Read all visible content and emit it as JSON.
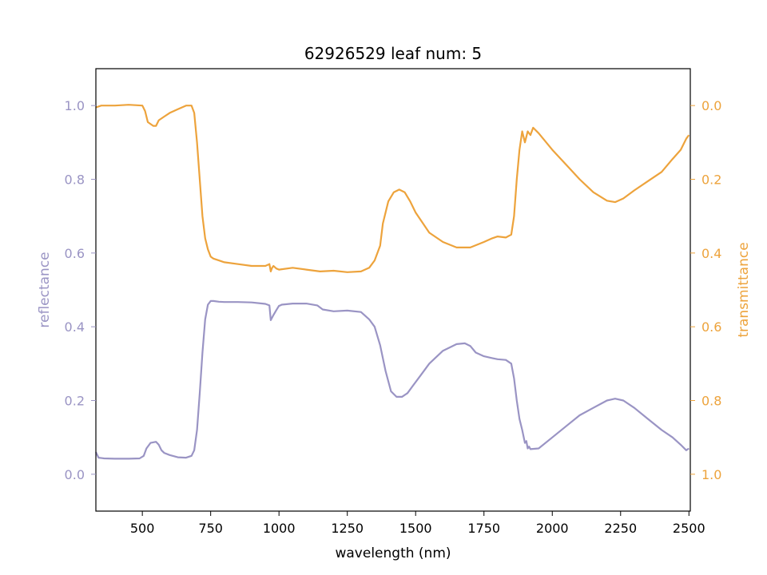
{
  "chart_data": {
    "type": "line",
    "title": "62926529 leaf num: 5",
    "xlabel": "wavelength (nm)",
    "ylabel_left": "reflectance",
    "ylabel_right": "transmittance",
    "xlim": [
      330,
      2505
    ],
    "ylim_left": [
      -0.1,
      1.1
    ],
    "ylim_right": [
      1.1,
      -0.1
    ],
    "right_axis_inverted": true,
    "grid": false,
    "x_ticks": [
      500,
      750,
      1000,
      1250,
      1500,
      1750,
      2000,
      2250,
      2500
    ],
    "y_left_ticks": [
      0.0,
      0.2,
      0.4,
      0.6,
      0.8,
      1.0
    ],
    "y_left_tick_labels": [
      "0.0",
      "0.2",
      "0.4",
      "0.6",
      "0.8",
      "1.0"
    ],
    "y_right_ticks": [
      0.0,
      0.2,
      0.4,
      0.6,
      0.8,
      1.0
    ],
    "y_right_tick_labels": [
      "0.0",
      "0.2",
      "0.4",
      "0.6",
      "0.8",
      "1.0"
    ],
    "colors": {
      "reflectance": "#9a94c4",
      "transmittance": "#eda33c",
      "axis": "#000000"
    },
    "series": [
      {
        "key": "reflectance",
        "axis": "left",
        "x": [
          330,
          340,
          360,
          400,
          450,
          490,
          505,
          515,
          530,
          550,
          560,
          570,
          580,
          600,
          630,
          660,
          680,
          690,
          700,
          710,
          720,
          730,
          740,
          750,
          760,
          780,
          800,
          850,
          900,
          950,
          965,
          970,
          975,
          980,
          990,
          1000,
          1005,
          1010,
          1050,
          1100,
          1140,
          1160,
          1200,
          1250,
          1300,
          1330,
          1350,
          1370,
          1390,
          1410,
          1430,
          1450,
          1470,
          1490,
          1520,
          1550,
          1600,
          1650,
          1680,
          1700,
          1720,
          1750,
          1780,
          1800,
          1830,
          1850,
          1860,
          1870,
          1880,
          1890,
          1900,
          1905,
          1910,
          1915,
          1920,
          1950,
          2000,
          2050,
          2100,
          2150,
          2200,
          2230,
          2260,
          2300,
          2350,
          2400,
          2440,
          2470,
          2490,
          2500
        ],
        "y": [
          0.06,
          0.045,
          0.043,
          0.042,
          0.042,
          0.043,
          0.05,
          0.07,
          0.085,
          0.088,
          0.08,
          0.065,
          0.058,
          0.052,
          0.046,
          0.045,
          0.05,
          0.065,
          0.12,
          0.22,
          0.33,
          0.42,
          0.46,
          0.47,
          0.47,
          0.468,
          0.467,
          0.467,
          0.466,
          0.462,
          0.458,
          0.418,
          0.425,
          0.432,
          0.445,
          0.457,
          0.458,
          0.46,
          0.463,
          0.463,
          0.458,
          0.447,
          0.442,
          0.444,
          0.44,
          0.42,
          0.4,
          0.35,
          0.28,
          0.225,
          0.21,
          0.21,
          0.22,
          0.24,
          0.27,
          0.3,
          0.335,
          0.353,
          0.355,
          0.348,
          0.33,
          0.32,
          0.315,
          0.312,
          0.31,
          0.3,
          0.26,
          0.2,
          0.15,
          0.12,
          0.085,
          0.09,
          0.07,
          0.075,
          0.068,
          0.07,
          0.1,
          0.13,
          0.16,
          0.18,
          0.2,
          0.205,
          0.2,
          0.18,
          0.15,
          0.12,
          0.1,
          0.08,
          0.065,
          0.07
        ]
      },
      {
        "key": "transmittance",
        "axis": "right",
        "x": [
          330,
          350,
          400,
          450,
          500,
          510,
          520,
          540,
          550,
          560,
          580,
          600,
          630,
          660,
          680,
          690,
          700,
          710,
          720,
          730,
          740,
          750,
          760,
          780,
          800,
          850,
          900,
          950,
          965,
          970,
          975,
          980,
          990,
          1000,
          1050,
          1100,
          1150,
          1200,
          1250,
          1300,
          1330,
          1350,
          1370,
          1380,
          1400,
          1420,
          1440,
          1460,
          1480,
          1500,
          1550,
          1600,
          1650,
          1700,
          1750,
          1780,
          1800,
          1830,
          1850,
          1860,
          1870,
          1880,
          1890,
          1900,
          1910,
          1920,
          1930,
          1950,
          2000,
          2050,
          2100,
          2150,
          2200,
          2230,
          2260,
          2300,
          2350,
          2400,
          2440,
          2470,
          2490,
          2500
        ],
        "y": [
          0.005,
          0.0,
          0.0,
          -0.002,
          0.0,
          0.015,
          0.045,
          0.055,
          0.055,
          0.04,
          0.03,
          0.02,
          0.01,
          0.0,
          0.0,
          0.02,
          0.1,
          0.2,
          0.3,
          0.36,
          0.39,
          0.41,
          0.415,
          0.42,
          0.425,
          0.43,
          0.435,
          0.435,
          0.43,
          0.45,
          0.44,
          0.435,
          0.442,
          0.445,
          0.44,
          0.445,
          0.45,
          0.448,
          0.452,
          0.45,
          0.44,
          0.42,
          0.38,
          0.32,
          0.26,
          0.235,
          0.228,
          0.235,
          0.26,
          0.29,
          0.345,
          0.37,
          0.385,
          0.385,
          0.37,
          0.36,
          0.355,
          0.358,
          0.35,
          0.3,
          0.2,
          0.12,
          0.07,
          0.1,
          0.07,
          0.08,
          0.06,
          0.075,
          0.12,
          0.16,
          0.2,
          0.235,
          0.258,
          0.262,
          0.252,
          0.23,
          0.205,
          0.18,
          0.145,
          0.12,
          0.09,
          0.08
        ]
      }
    ]
  }
}
